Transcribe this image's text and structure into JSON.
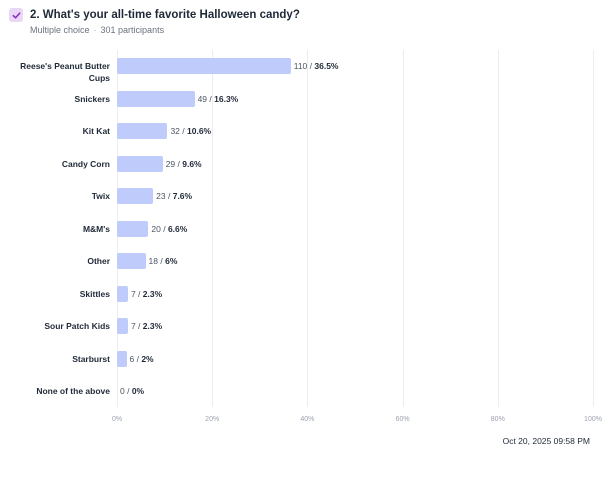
{
  "header": {
    "title": "2. What's your all-time favorite Halloween candy?",
    "type": "Multiple choice",
    "separator": "·",
    "participants": "301 participants",
    "icon": "checkbox-checked-icon",
    "icon_bg": "#ead7f5",
    "icon_color": "#8b2fc9"
  },
  "footer": {
    "timestamp": "Oct 20, 2025  09:58 PM"
  },
  "colors": {
    "bar": "#bfcbfb",
    "grid": "#ededed"
  },
  "chart_data": {
    "type": "bar",
    "orientation": "horizontal",
    "title": "2. What's your all-time favorite Halloween candy?",
    "xlabel": "",
    "ylabel": "",
    "xlim": [
      0,
      100
    ],
    "x_ticks": [
      "0%",
      "20%",
      "40%",
      "60%",
      "80%",
      "100%"
    ],
    "grid": true,
    "legend": false,
    "categories": [
      "Reese's Peanut Butter Cups",
      "Snickers",
      "Kit Kat",
      "Candy Corn",
      "Twix",
      "M&M's",
      "Other",
      "Skittles",
      "Sour Patch Kids",
      "Starburst",
      "None of the above"
    ],
    "counts": [
      110,
      49,
      32,
      29,
      23,
      20,
      18,
      7,
      7,
      6,
      0
    ],
    "values": [
      36.5,
      16.3,
      10.6,
      9.6,
      7.6,
      6.6,
      6,
      2.3,
      2.3,
      2,
      0
    ],
    "value_labels": [
      "36.5%",
      "16.3%",
      "10.6%",
      "9.6%",
      "7.6%",
      "6.6%",
      "6%",
      "2.3%",
      "2.3%",
      "2%",
      "0%"
    ],
    "total_participants": 301
  }
}
